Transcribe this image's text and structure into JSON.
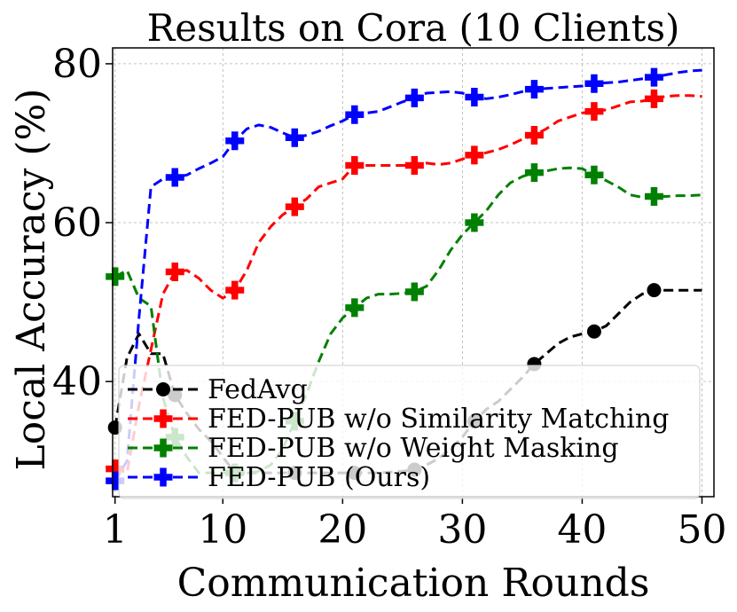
{
  "chart_data": {
    "type": "line",
    "title": "Results on Cora (10 Clients)",
    "xlabel": "Communication Rounds",
    "ylabel": "Local Accuracy (%)",
    "xlim": [
      0.8,
      51
    ],
    "ylim": [
      25.5,
      82
    ],
    "xticks": [
      1,
      10,
      20,
      30,
      40,
      50
    ],
    "yticks": [
      40,
      60,
      80
    ],
    "grid": true,
    "legend_position": "lower-right",
    "series": [
      {
        "name": "FedAvg",
        "color": "#000000",
        "marker": "circle",
        "x": [
          1,
          2,
          3,
          4,
          5,
          6,
          7,
          8,
          9,
          10,
          11,
          12,
          13,
          14,
          15,
          16,
          17,
          18,
          19,
          20,
          21,
          22,
          23,
          24,
          25,
          26,
          27,
          28,
          29,
          30,
          31,
          32,
          33,
          34,
          35,
          36,
          37,
          38,
          39,
          40,
          41,
          42,
          43,
          44,
          45,
          46,
          47,
          48,
          49,
          50
        ],
        "y": [
          34.2,
          43.0,
          46.0,
          43.5,
          43.5,
          38.3,
          36.0,
          34.0,
          32.5,
          30.5,
          28.5,
          28.5,
          28.5,
          28.5,
          28.5,
          28.5,
          28.5,
          28.5,
          28.5,
          28.5,
          28.5,
          28.5,
          28.5,
          28.6,
          28.7,
          28.9,
          29.5,
          30.3,
          31.5,
          33.0,
          35.0,
          36.5,
          37.5,
          39.0,
          40.5,
          42.2,
          43.5,
          44.8,
          45.6,
          46.0,
          46.3,
          47.0,
          48.5,
          50.0,
          51.0,
          51.5,
          51.5,
          51.5,
          51.5,
          51.5
        ],
        "markers_at": [
          1,
          6,
          11,
          16,
          21,
          26,
          31,
          36,
          41,
          46
        ]
      },
      {
        "name": "FED-PUB w/o Similarity Matching",
        "color": "#ff0000",
        "marker": "plus",
        "x": [
          1,
          2,
          3,
          4,
          5,
          6,
          7,
          8,
          9,
          10,
          11,
          12,
          13,
          14,
          15,
          16,
          17,
          18,
          19,
          20,
          21,
          22,
          23,
          24,
          25,
          26,
          27,
          28,
          29,
          30,
          31,
          32,
          33,
          34,
          35,
          36,
          37,
          38,
          39,
          40,
          41,
          42,
          43,
          44,
          45,
          46,
          47,
          48,
          49,
          50
        ],
        "y": [
          29.0,
          28.5,
          37.0,
          44.0,
          51.0,
          53.8,
          54.0,
          53.0,
          51.5,
          50.5,
          51.5,
          54.0,
          57.5,
          59.5,
          61.0,
          62.0,
          63.0,
          64.5,
          65.0,
          65.5,
          67.2,
          67.2,
          67.2,
          67.2,
          67.2,
          67.2,
          67.5,
          67.3,
          67.5,
          68.0,
          68.5,
          68.8,
          69.2,
          69.8,
          70.5,
          71.0,
          71.8,
          72.8,
          73.3,
          73.8,
          74.0,
          74.2,
          74.7,
          75.2,
          75.3,
          75.6,
          75.9,
          76.0,
          76.0,
          75.9
        ],
        "markers_at": [
          1,
          6,
          11,
          16,
          21,
          26,
          31,
          36,
          41,
          46
        ]
      },
      {
        "name": "FED-PUB w/o Weight Masking",
        "color": "#008000",
        "marker": "plus",
        "x": [
          1,
          2,
          3,
          4,
          5,
          6,
          7,
          8,
          9,
          10,
          11,
          12,
          13,
          14,
          15,
          16,
          17,
          18,
          19,
          20,
          21,
          22,
          23,
          24,
          25,
          26,
          27,
          28,
          29,
          30,
          31,
          32,
          33,
          34,
          35,
          36,
          37,
          38,
          39,
          40,
          41,
          42,
          43,
          44,
          45,
          46,
          47,
          48,
          49,
          50
        ],
        "y": [
          53.2,
          54.0,
          50.5,
          49.5,
          38.0,
          33.0,
          30.5,
          28.5,
          28.5,
          28.5,
          28.5,
          28.5,
          28.7,
          29.5,
          31.5,
          35.0,
          38.5,
          42.5,
          46.0,
          48.0,
          49.3,
          50.5,
          51.0,
          51.0,
          51.1,
          51.3,
          52.0,
          54.0,
          56.5,
          58.5,
          60.0,
          61.5,
          63.5,
          65.0,
          65.8,
          66.3,
          66.5,
          66.8,
          66.9,
          66.8,
          66.0,
          65.3,
          64.5,
          63.5,
          63.2,
          63.3,
          63.3,
          63.4,
          63.4,
          63.5
        ],
        "markers_at": [
          1,
          6,
          11,
          16,
          21,
          26,
          31,
          36,
          41,
          46
        ]
      },
      {
        "name": "FED-PUB (Ours)",
        "color": "#0000ff",
        "marker": "plus",
        "x": [
          1,
          2,
          3,
          4,
          5,
          6,
          7,
          8,
          9,
          10,
          11,
          12,
          13,
          14,
          15,
          16,
          17,
          18,
          19,
          20,
          21,
          22,
          23,
          24,
          25,
          26,
          27,
          28,
          29,
          30,
          31,
          32,
          33,
          34,
          35,
          36,
          37,
          38,
          39,
          40,
          41,
          42,
          43,
          44,
          45,
          46,
          47,
          48,
          49,
          50
        ],
        "y": [
          27.5,
          30.0,
          48.0,
          64.5,
          65.5,
          65.7,
          66.0,
          66.8,
          67.5,
          68.3,
          70.3,
          71.8,
          72.3,
          72.0,
          71.3,
          70.7,
          71.0,
          71.5,
          72.2,
          72.8,
          73.6,
          73.8,
          74.0,
          74.6,
          75.2,
          75.7,
          76.3,
          76.4,
          76.5,
          76.3,
          75.8,
          75.6,
          75.8,
          76.1,
          76.5,
          76.8,
          76.9,
          77.0,
          77.1,
          77.2,
          77.5,
          77.6,
          77.7,
          77.9,
          78.1,
          78.3,
          78.6,
          78.9,
          79.1,
          79.2
        ],
        "markers_at": [
          1,
          6,
          11,
          16,
          21,
          26,
          31,
          36,
          41,
          46
        ]
      }
    ]
  }
}
